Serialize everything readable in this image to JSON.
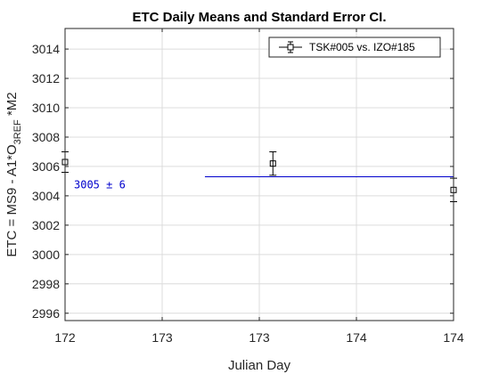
{
  "chart_data": {
    "type": "scatter",
    "title": "ETC Daily Means and Standard Error CI.",
    "xlabel": "Julian Day",
    "ylabel": {
      "prefix": "ETC =  MS9 - A1*O",
      "subscript": "3REF",
      "suffix": " *M2"
    },
    "xlim": [
      172,
      174
    ],
    "ylim": [
      2995.5,
      3015.4
    ],
    "x_ticks": [
      172,
      172.5,
      173,
      173.5,
      174
    ],
    "x_tick_labels": [
      "172",
      "173",
      "173",
      "174",
      "174"
    ],
    "y_ticks": [
      2996,
      2998,
      3000,
      3002,
      3004,
      3006,
      3008,
      3010,
      3012,
      3014
    ],
    "y_tick_labels": [
      "2996",
      "2998",
      "3000",
      "3002",
      "3004",
      "3006",
      "3008",
      "3010",
      "3012",
      "3014"
    ],
    "grid": true,
    "legend_position": "top-right",
    "series": [
      {
        "name": "TSK#005 vs. IZO#185",
        "marker": "square",
        "color": "#000000",
        "x": [
          172.0,
          173.07,
          174.0
        ],
        "y": [
          3006.3,
          3006.2,
          3004.4
        ],
        "err": [
          0.7,
          0.8,
          0.8
        ]
      }
    ],
    "mean_line": {
      "value": 3005.3,
      "x_start": 172.72,
      "x_end": 174,
      "label": "3005 ± 6",
      "color": "#0000cc"
    }
  }
}
